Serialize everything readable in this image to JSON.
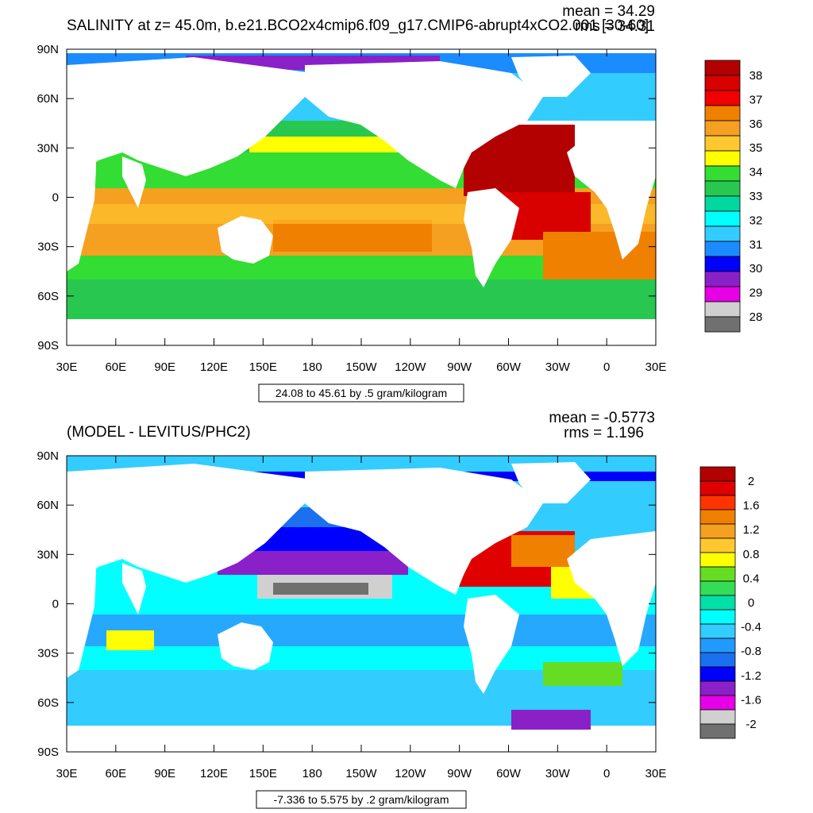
{
  "panels": [
    {
      "title": "SALINITY at z=  45.0m, b.e21.BCO2x4cmip6.f09_g17.CMIP6-abrupt4xCO2.001 [30-60]",
      "mean_label": "mean = 34.29",
      "rms_label": "rms = 34.31",
      "info_label": "24.08 to 45.61 by .5 gram/kilogram",
      "lat_ticks": [
        "90N",
        "60N",
        "30N",
        "0",
        "30S",
        "60S",
        "90S"
      ],
      "lon_ticks": [
        "30E",
        "60E",
        "90E",
        "120E",
        "150E",
        "180",
        "150W",
        "120W",
        "90W",
        "60W",
        "30W",
        "0",
        "30E"
      ],
      "colorbar": {
        "labels": [
          "38",
          "37",
          "36",
          "35",
          "34",
          "33",
          "32",
          "31",
          "30",
          "29",
          "28"
        ],
        "colors": [
          "#b30000",
          "#d90000",
          "#f00000",
          "#f08000",
          "#f5a020",
          "#ffc830",
          "#ffff00",
          "#33dd33",
          "#28c850",
          "#00d8a0",
          "#00ffff",
          "#33ccff",
          "#1a8cff",
          "#0000ff",
          "#8a20c8",
          "#e600e6",
          "#d0d0d0",
          "#707070"
        ]
      },
      "chart_data": {
        "type": "heatmap",
        "variable": "SALINITY",
        "depth": "45.0m",
        "x_axis": "longitude 30E to 30E (360 deg)",
        "y_axis": "latitude 90S to 90N",
        "contour_min": 24.08,
        "contour_max": 45.61,
        "contour_interval": 0.5,
        "units": "gram/kilogram",
        "mean": 34.29,
        "rms": 34.31,
        "colorbar_range": [
          28,
          38
        ]
      }
    },
    {
      "title": "(MODEL - LEVITUS/PHC2)",
      "mean_label": "mean = -0.5773",
      "rms_label": "rms = 1.196",
      "info_label": "-7.336 to 5.575 by .2 gram/kilogram",
      "lat_ticks": [
        "90N",
        "60N",
        "30N",
        "0",
        "30S",
        "60S",
        "90S"
      ],
      "lon_ticks": [
        "30E",
        "60E",
        "90E",
        "120E",
        "150E",
        "180",
        "150W",
        "120W",
        "90W",
        "60W",
        "30W",
        "0",
        "30E"
      ],
      "colorbar": {
        "labels": [
          "2",
          "1.6",
          "1.2",
          "0.8",
          "0.4",
          "0",
          "-0.4",
          "-0.8",
          "-1.2",
          "-1.6",
          "-2"
        ],
        "colors": [
          "#b30000",
          "#e00000",
          "#ff3300",
          "#f08000",
          "#f5a020",
          "#ffc830",
          "#ffff00",
          "#66dd22",
          "#33dd55",
          "#00e0a8",
          "#00ffff",
          "#33ccff",
          "#2299ff",
          "#1a70ee",
          "#0000ff",
          "#8a20c8",
          "#e600e6",
          "#d0d0d0",
          "#707070"
        ]
      },
      "chart_data": {
        "type": "heatmap",
        "variable": "SALINITY difference",
        "comparison": "MODEL - LEVITUS/PHC2",
        "contour_min": -7.336,
        "contour_max": 5.575,
        "contour_interval": 0.2,
        "units": "gram/kilogram",
        "mean": -0.5773,
        "rms": 1.196,
        "colorbar_range": [
          -2,
          2
        ]
      }
    }
  ]
}
